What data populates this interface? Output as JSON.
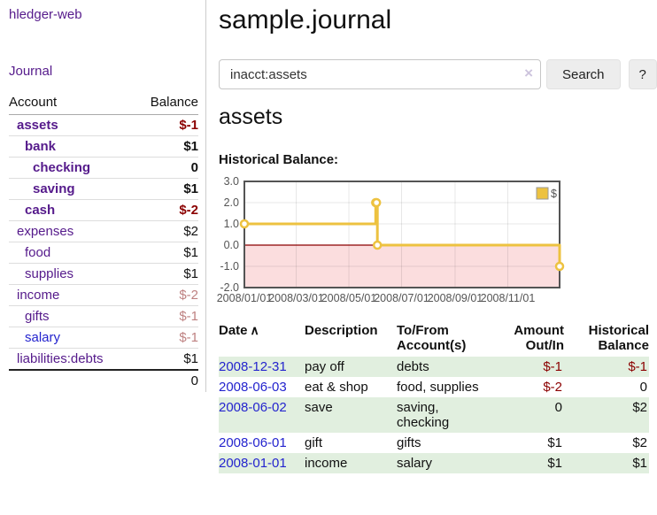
{
  "colors": {
    "purple": "#551A8B",
    "blue": "#2424CE",
    "neg-strong": "#8B0000",
    "neg-soft": "#BE8181",
    "stripe-green": "#E1EFDF",
    "chart-yellow": "#EDC240",
    "chart-border": "#545454",
    "axis-text": "#545454",
    "button-bg": "#EDEDED",
    "divider": "#CCCCCC",
    "row-border": "#DDDDDD"
  },
  "sidebar": {
    "brand": "hledger-web",
    "journal_link": "Journal",
    "accounts_table": {
      "headers": {
        "account": "Account",
        "balance": "Balance"
      },
      "rows": [
        {
          "name": "assets",
          "depth": 1,
          "bold": true,
          "link": "purple",
          "balance": "$-1",
          "balance_class": "neg-strong"
        },
        {
          "name": "bank",
          "depth": 2,
          "bold": true,
          "link": "purple",
          "balance": "$1",
          "balance_class": "num"
        },
        {
          "name": "checking",
          "depth": 3,
          "bold": true,
          "link": "purple",
          "balance": "0",
          "balance_class": "num"
        },
        {
          "name": "saving",
          "depth": 3,
          "bold": true,
          "link": "purple",
          "balance": "$1",
          "balance_class": "num"
        },
        {
          "name": "cash",
          "depth": 2,
          "bold": true,
          "link": "purple",
          "balance": "$-2",
          "balance_class": "neg-strong"
        },
        {
          "name": "expenses",
          "depth": 1,
          "bold": false,
          "link": "purple",
          "balance": "$2",
          "balance_class": "num"
        },
        {
          "name": "food",
          "depth": 2,
          "bold": false,
          "link": "purple",
          "balance": "$1",
          "balance_class": "num"
        },
        {
          "name": "supplies",
          "depth": 2,
          "bold": false,
          "link": "purple",
          "balance": "$1",
          "balance_class": "num"
        },
        {
          "name": "income",
          "depth": 1,
          "bold": false,
          "link": "purple",
          "balance": "$-2",
          "balance_class": "neg-soft"
        },
        {
          "name": "gifts",
          "depth": 2,
          "bold": false,
          "link": "purple",
          "balance": "$-1",
          "balance_class": "neg-soft"
        },
        {
          "name": "salary",
          "depth": 2,
          "bold": false,
          "link": "blue",
          "balance": "$-1",
          "balance_class": "neg-soft"
        },
        {
          "name": "liabilities:debts",
          "depth": 1,
          "bold": false,
          "link": "purple",
          "balance": "$1",
          "balance_class": "num"
        }
      ],
      "total": "0"
    }
  },
  "header": {
    "title": "sample.journal"
  },
  "search": {
    "value": "inacct:assets",
    "clear_icon": "×",
    "button_label": "Search",
    "help_label": "?"
  },
  "main": {
    "account_heading": "assets",
    "chart_label": "Historical Balance:"
  },
  "chart_data": {
    "type": "line",
    "style": "step",
    "title": "Historical Balance",
    "series": [
      {
        "name": "$",
        "color": "#EDC240",
        "points": [
          {
            "date": "2008-01-01",
            "value": 1
          },
          {
            "date": "2008-06-01",
            "value": 2
          },
          {
            "date": "2008-06-02",
            "value": 2
          },
          {
            "date": "2008-06-03",
            "value": 0
          },
          {
            "date": "2008-12-31",
            "value": -1
          }
        ]
      }
    ],
    "x_domain": [
      "2008-01-01",
      "2008-12-31"
    ],
    "x_ticks": [
      "2008/01/01",
      "2008/03/01",
      "2008/05/01",
      "2008/07/01",
      "2008/09/01",
      "2008/11/01"
    ],
    "y_ticks": [
      "3.0",
      "2.0",
      "1.0",
      "0.0",
      "-1.0",
      "-2.0"
    ],
    "y_min": -2,
    "y_max": 3,
    "grid": true,
    "legend_position": "top-right",
    "negative_region_color": "#FBDDDE",
    "zero_line_color": "#8B0000"
  },
  "register": {
    "headers": {
      "date": "Date",
      "sort_icon": "∧",
      "description": "Description",
      "account": "To/From Account(s)",
      "amount": "Amount Out/In",
      "balance": "Historical Balance"
    },
    "rows": [
      {
        "date": "2008-12-31",
        "description": "pay off",
        "accounts": "debts",
        "amount": "$-1",
        "amount_negative": true,
        "balance": "$-1",
        "balance_negative": true
      },
      {
        "date": "2008-06-03",
        "description": "eat & shop",
        "accounts": "food, supplies",
        "amount": "$-2",
        "amount_negative": true,
        "balance": "0",
        "balance_negative": false
      },
      {
        "date": "2008-06-02",
        "description": "save",
        "accounts": "saving, checking",
        "amount": "0",
        "amount_negative": false,
        "balance": "$2",
        "balance_negative": false
      },
      {
        "date": "2008-06-01",
        "description": "gift",
        "accounts": "gifts",
        "amount": "$1",
        "amount_negative": false,
        "balance": "$2",
        "balance_negative": false
      },
      {
        "date": "2008-01-01",
        "description": "income",
        "accounts": "salary",
        "amount": "$1",
        "amount_negative": false,
        "balance": "$1",
        "balance_negative": false
      }
    ]
  }
}
